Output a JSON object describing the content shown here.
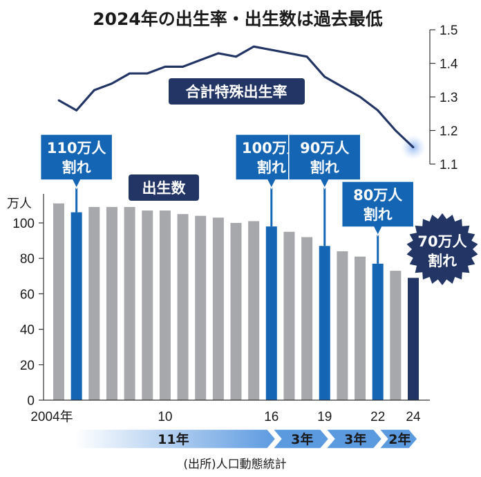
{
  "title": "2024年の出生率・出生数は過去最低",
  "source": "(出所)人口動態統計",
  "chart_data": [
    {
      "type": "bar",
      "name": "出生数",
      "unit": "万人",
      "x": [
        2004,
        2005,
        2006,
        2007,
        2008,
        2009,
        2010,
        2011,
        2012,
        2013,
        2014,
        2015,
        2016,
        2017,
        2018,
        2019,
        2020,
        2021,
        2022,
        2023,
        2024
      ],
      "values": [
        111,
        106,
        109,
        109,
        109,
        107,
        107,
        105,
        104,
        103,
        100,
        101,
        98,
        95,
        92,
        87,
        84,
        81,
        77,
        73,
        69
      ],
      "x_tick_labels": [
        "2004年",
        "10",
        "16",
        "19",
        "22",
        "24"
      ],
      "x_tick_years": [
        2004,
        2010,
        2016,
        2019,
        2022,
        2024
      ],
      "y_ticks": [
        0,
        20,
        40,
        60,
        80,
        100
      ],
      "ylim": [
        0,
        115
      ],
      "highlight_years": [
        2005,
        2016,
        2019,
        2022
      ],
      "latest_year": 2024,
      "colors": {
        "normal": "#a6a8ab",
        "highlight": "#1565b5",
        "latest": "#223564"
      }
    },
    {
      "type": "line",
      "name": "合計特殊出生率",
      "x": [
        2004,
        2005,
        2006,
        2007,
        2008,
        2009,
        2010,
        2011,
        2012,
        2013,
        2014,
        2015,
        2016,
        2017,
        2018,
        2019,
        2020,
        2021,
        2022,
        2023,
        2024
      ],
      "values": [
        1.29,
        1.26,
        1.32,
        1.34,
        1.37,
        1.37,
        1.39,
        1.39,
        1.41,
        1.43,
        1.42,
        1.45,
        1.44,
        1.43,
        1.42,
        1.36,
        1.33,
        1.3,
        1.26,
        1.2,
        1.15
      ],
      "y_ticks": [
        1.1,
        1.2,
        1.3,
        1.4,
        1.5
      ],
      "ylim": [
        1.1,
        1.5
      ],
      "color": "#223564"
    }
  ],
  "series_labels": {
    "births": "出生数",
    "tfr": "合計特殊出生率"
  },
  "callouts": [
    {
      "year": 2005,
      "line1": "110万人",
      "line2": "割れ"
    },
    {
      "year": 2016,
      "line1": "100万人",
      "line2": "割れ"
    },
    {
      "year": 2019,
      "line1": "90万人",
      "line2": "割れ"
    },
    {
      "year": 2022,
      "line1": "80万人",
      "line2": "割れ"
    }
  ],
  "burst": {
    "year": 2024,
    "line1": "70万人",
    "line2": "割れ"
  },
  "spans": [
    {
      "label": "11年",
      "from": 2005,
      "to": 2016
    },
    {
      "label": "3年",
      "from": 2016,
      "to": 2019
    },
    {
      "label": "3年",
      "from": 2019,
      "to": 2022
    },
    {
      "label": "2年",
      "from": 2022,
      "to": 2024
    }
  ],
  "accent_color": "#1565b5",
  "dark_color": "#223564"
}
